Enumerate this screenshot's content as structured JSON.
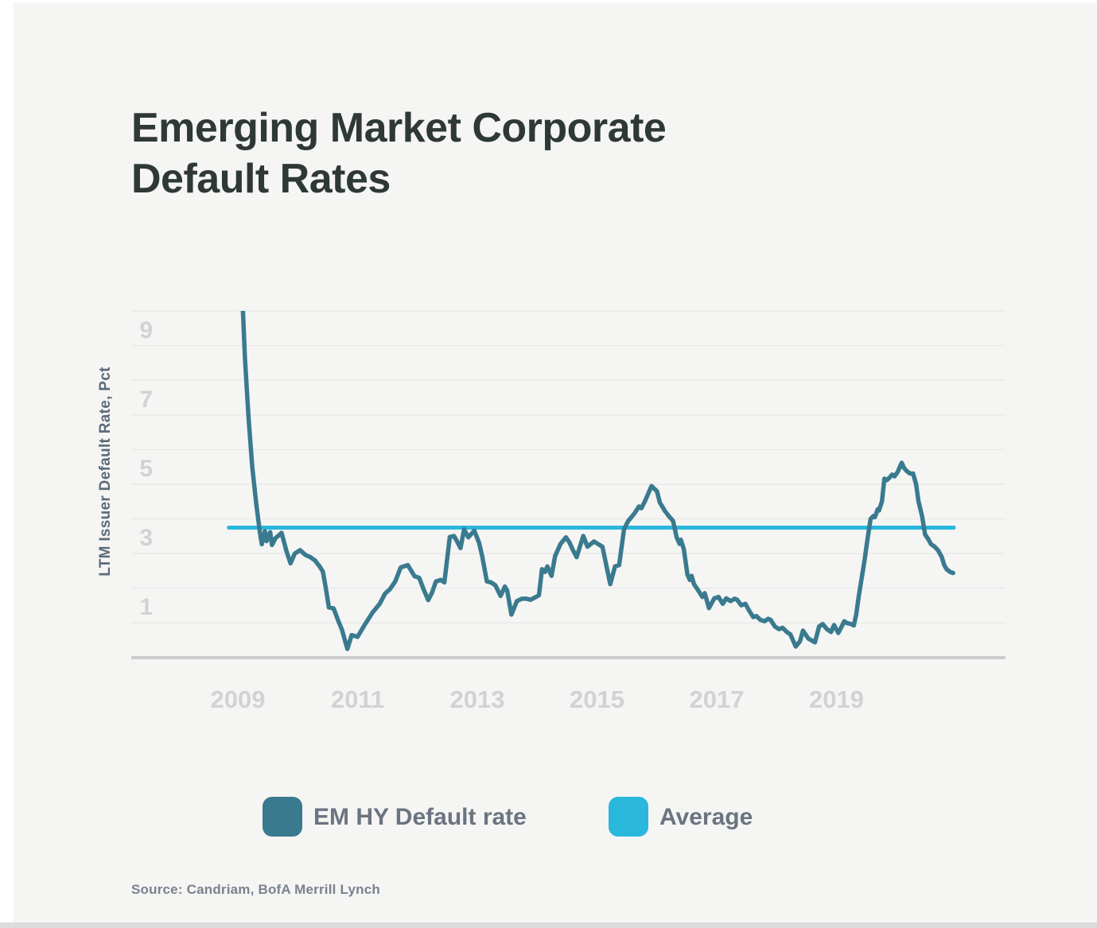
{
  "title": {
    "line1": "Emerging Market Corporate",
    "line2": "Default Rates"
  },
  "source": {
    "text": "Source: Candriam, BofA Merrill Lynch"
  },
  "theme": {
    "background": "#f5f5f4",
    "title_color": "#2e3936",
    "axis_tick_color": "#d2d2d2",
    "y_axis_title_color": "#5b6b78",
    "legend_text_color": "#6b7480",
    "source_text_color": "#7a828e",
    "gridline_color": "#e9e9e7",
    "baseline_color": "#cccccc",
    "line_color": "#3a7a8e",
    "average_color": "#29b7dc"
  },
  "chart_data": {
    "type": "line",
    "title": "Emerging Market Corporate Default Rates",
    "xlabel": "",
    "ylabel": "LTM Issuer Default Rate, Pct",
    "ylim": [
      0,
      10
    ],
    "grid": "horizontal, every 1 unit, baseline at 0",
    "legend_position": "bottom",
    "x_ticks": [
      "2009",
      "2011",
      "2013",
      "2015",
      "2017",
      "2019"
    ],
    "y_ticks": [
      9,
      7,
      5,
      3,
      1
    ],
    "series": [
      {
        "name": "EM HY Default rate",
        "color": "#3a7a8e",
        "points": [
          [
            2009.06,
            11.0
          ],
          [
            2009.12,
            8.6
          ],
          [
            2009.18,
            6.9
          ],
          [
            2009.24,
            5.5
          ],
          [
            2009.31,
            4.4
          ],
          [
            2009.37,
            3.6
          ],
          [
            2009.4,
            3.27
          ],
          [
            2009.45,
            3.65
          ],
          [
            2009.48,
            3.36
          ],
          [
            2009.54,
            3.62
          ],
          [
            2009.57,
            3.25
          ],
          [
            2009.63,
            3.45
          ],
          [
            2009.68,
            3.52
          ],
          [
            2009.73,
            3.6
          ],
          [
            2009.81,
            3.08
          ],
          [
            2009.88,
            2.72
          ],
          [
            2009.95,
            3.0
          ],
          [
            2010.04,
            3.1
          ],
          [
            2010.13,
            2.96
          ],
          [
            2010.21,
            2.9
          ],
          [
            2010.29,
            2.8
          ],
          [
            2010.37,
            2.62
          ],
          [
            2010.42,
            2.48
          ],
          [
            2010.47,
            2.0
          ],
          [
            2010.52,
            1.45
          ],
          [
            2010.6,
            1.42
          ],
          [
            2010.68,
            1.05
          ],
          [
            2010.74,
            0.8
          ],
          [
            2010.83,
            0.25
          ],
          [
            2010.9,
            0.65
          ],
          [
            2011.0,
            0.6
          ],
          [
            2011.12,
            0.95
          ],
          [
            2011.25,
            1.3
          ],
          [
            2011.37,
            1.55
          ],
          [
            2011.46,
            1.85
          ],
          [
            2011.54,
            1.97
          ],
          [
            2011.63,
            2.2
          ],
          [
            2011.72,
            2.6
          ],
          [
            2011.84,
            2.67
          ],
          [
            2011.95,
            2.35
          ],
          [
            2012.03,
            2.3
          ],
          [
            2012.1,
            1.98
          ],
          [
            2012.18,
            1.66
          ],
          [
            2012.24,
            1.86
          ],
          [
            2012.31,
            2.2
          ],
          [
            2012.39,
            2.24
          ],
          [
            2012.45,
            2.17
          ],
          [
            2012.54,
            3.48
          ],
          [
            2012.61,
            3.51
          ],
          [
            2012.66,
            3.36
          ],
          [
            2012.72,
            3.16
          ],
          [
            2012.78,
            3.7
          ],
          [
            2012.85,
            3.47
          ],
          [
            2012.95,
            3.66
          ],
          [
            2013.03,
            3.31
          ],
          [
            2013.08,
            2.94
          ],
          [
            2013.16,
            2.2
          ],
          [
            2013.23,
            2.17
          ],
          [
            2013.3,
            2.09
          ],
          [
            2013.39,
            1.78
          ],
          [
            2013.46,
            2.05
          ],
          [
            2013.5,
            1.93
          ],
          [
            2013.57,
            1.24
          ],
          [
            2013.66,
            1.63
          ],
          [
            2013.75,
            1.7
          ],
          [
            2013.82,
            1.7
          ],
          [
            2013.89,
            1.67
          ],
          [
            2013.97,
            1.74
          ],
          [
            2014.03,
            1.8
          ],
          [
            2014.08,
            2.55
          ],
          [
            2014.13,
            2.47
          ],
          [
            2014.17,
            2.63
          ],
          [
            2014.24,
            2.36
          ],
          [
            2014.3,
            2.93
          ],
          [
            2014.39,
            3.28
          ],
          [
            2014.48,
            3.47
          ],
          [
            2014.54,
            3.32
          ],
          [
            2014.59,
            3.13
          ],
          [
            2014.66,
            2.9
          ],
          [
            2014.77,
            3.51
          ],
          [
            2014.84,
            3.2
          ],
          [
            2014.95,
            3.35
          ],
          [
            2015.09,
            3.2
          ],
          [
            2015.22,
            2.12
          ],
          [
            2015.3,
            2.63
          ],
          [
            2015.37,
            2.67
          ],
          [
            2015.45,
            3.7
          ],
          [
            2015.52,
            3.94
          ],
          [
            2015.63,
            4.17
          ],
          [
            2015.7,
            4.36
          ],
          [
            2015.74,
            4.31
          ],
          [
            2015.8,
            4.51
          ],
          [
            2015.91,
            4.95
          ],
          [
            2016.0,
            4.8
          ],
          [
            2016.05,
            4.47
          ],
          [
            2016.09,
            4.36
          ],
          [
            2016.13,
            4.24
          ],
          [
            2016.2,
            4.08
          ],
          [
            2016.27,
            3.94
          ],
          [
            2016.33,
            3.47
          ],
          [
            2016.38,
            3.28
          ],
          [
            2016.4,
            3.4
          ],
          [
            2016.45,
            3.13
          ],
          [
            2016.51,
            2.4
          ],
          [
            2016.55,
            2.24
          ],
          [
            2016.58,
            2.36
          ],
          [
            2016.62,
            2.12
          ],
          [
            2016.69,
            1.94
          ],
          [
            2016.76,
            1.75
          ],
          [
            2016.8,
            1.86
          ],
          [
            2016.87,
            1.43
          ],
          [
            2016.92,
            1.59
          ],
          [
            2016.96,
            1.71
          ],
          [
            2017.03,
            1.75
          ],
          [
            2017.1,
            1.55
          ],
          [
            2017.16,
            1.71
          ],
          [
            2017.23,
            1.63
          ],
          [
            2017.3,
            1.7
          ],
          [
            2017.34,
            1.67
          ],
          [
            2017.41,
            1.51
          ],
          [
            2017.48,
            1.55
          ],
          [
            2017.54,
            1.36
          ],
          [
            2017.61,
            1.17
          ],
          [
            2017.66,
            1.2
          ],
          [
            2017.73,
            1.09
          ],
          [
            2017.8,
            1.05
          ],
          [
            2017.86,
            1.12
          ],
          [
            2017.9,
            1.09
          ],
          [
            2017.97,
            0.9
          ],
          [
            2018.04,
            0.82
          ],
          [
            2018.1,
            0.86
          ],
          [
            2018.17,
            0.74
          ],
          [
            2018.23,
            0.67
          ],
          [
            2018.32,
            0.32
          ],
          [
            2018.39,
            0.47
          ],
          [
            2018.44,
            0.78
          ],
          [
            2018.53,
            0.55
          ],
          [
            2018.64,
            0.44
          ],
          [
            2018.71,
            0.9
          ],
          [
            2018.77,
            0.97
          ],
          [
            2018.84,
            0.82
          ],
          [
            2018.91,
            0.74
          ],
          [
            2018.96,
            0.94
          ],
          [
            2019.03,
            0.71
          ],
          [
            2019.1,
            0.94
          ],
          [
            2019.13,
            1.05
          ],
          [
            2019.17,
            1.0
          ],
          [
            2019.24,
            0.97
          ],
          [
            2019.29,
            0.93
          ],
          [
            2019.33,
            1.24
          ],
          [
            2019.37,
            1.74
          ],
          [
            2019.42,
            2.28
          ],
          [
            2019.47,
            2.82
          ],
          [
            2019.51,
            3.32
          ],
          [
            2019.54,
            3.66
          ],
          [
            2019.57,
            4.0
          ],
          [
            2019.62,
            4.09
          ],
          [
            2019.64,
            4.05
          ],
          [
            2019.69,
            4.28
          ],
          [
            2019.71,
            4.24
          ],
          [
            2019.76,
            4.51
          ],
          [
            2019.8,
            5.16
          ],
          [
            2019.84,
            5.12
          ],
          [
            2019.89,
            5.2
          ],
          [
            2019.93,
            5.28
          ],
          [
            2019.97,
            5.23
          ],
          [
            2020.02,
            5.35
          ],
          [
            2020.09,
            5.62
          ],
          [
            2020.13,
            5.47
          ],
          [
            2020.17,
            5.39
          ],
          [
            2020.23,
            5.31
          ],
          [
            2020.28,
            5.31
          ],
          [
            2020.33,
            5.0
          ],
          [
            2020.37,
            4.51
          ],
          [
            2020.43,
            4.08
          ],
          [
            2020.48,
            3.55
          ],
          [
            2020.53,
            3.43
          ],
          [
            2020.58,
            3.27
          ],
          [
            2020.64,
            3.2
          ],
          [
            2020.7,
            3.09
          ],
          [
            2020.76,
            2.9
          ],
          [
            2020.8,
            2.67
          ],
          [
            2020.84,
            2.55
          ],
          [
            2020.9,
            2.47
          ],
          [
            2020.95,
            2.44
          ]
        ]
      },
      {
        "name": "Average",
        "color": "#29b7dc",
        "value": 3.75,
        "t_start": 2008.85,
        "t_end": 2020.96
      }
    ]
  }
}
